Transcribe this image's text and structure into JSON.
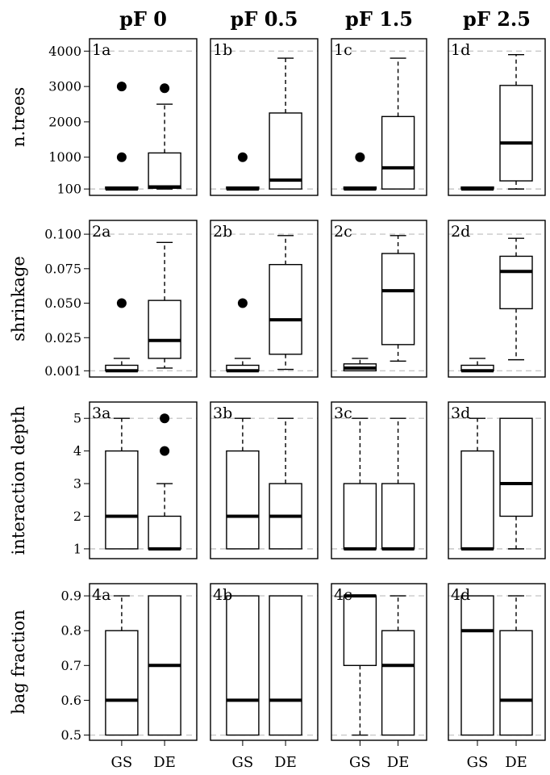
{
  "chart_data": {
    "type": "boxplot",
    "columns": [
      "pF 0",
      "pF 0.5",
      "pF 1.5",
      "pF 2.5"
    ],
    "categories": [
      "GS",
      "DE"
    ],
    "rows": [
      {
        "ylabel": "n.trees",
        "yticks": [
          100,
          1000,
          2000,
          3000,
          4000
        ],
        "ylim": [
          -80,
          4350
        ],
        "ref_lines": [
          100,
          4000
        ],
        "panels": [
          {
            "label": "1a",
            "boxes": [
              {
                "group": "GS",
                "min": 100,
                "q1": 100,
                "median": 100,
                "q3": 100,
                "max": 100,
                "outliers": [
                  1000,
                  3000
                ]
              },
              {
                "group": "DE",
                "min": 100,
                "q1": 120,
                "median": 160,
                "q3": 1120,
                "max": 2500,
                "outliers": [
                  2950
                ]
              }
            ]
          },
          {
            "label": "1b",
            "boxes": [
              {
                "group": "GS",
                "min": 100,
                "q1": 100,
                "median": 100,
                "q3": 100,
                "max": 100,
                "outliers": [
                  1000
                ]
              },
              {
                "group": "DE",
                "min": 100,
                "q1": 100,
                "median": 350,
                "q3": 2250,
                "max": 3800,
                "outliers": []
              }
            ]
          },
          {
            "label": "1c",
            "boxes": [
              {
                "group": "GS",
                "min": 100,
                "q1": 100,
                "median": 100,
                "q3": 100,
                "max": 100,
                "outliers": [
                  1000
                ]
              },
              {
                "group": "DE",
                "min": 100,
                "q1": 100,
                "median": 700,
                "q3": 2150,
                "max": 3800,
                "outliers": []
              }
            ]
          },
          {
            "label": "1d",
            "boxes": [
              {
                "group": "GS",
                "min": 100,
                "q1": 100,
                "median": 100,
                "q3": 100,
                "max": 100,
                "outliers": []
              },
              {
                "group": "DE",
                "min": 100,
                "q1": 330,
                "median": 1400,
                "q3": 3030,
                "max": 3900,
                "outliers": []
              }
            ]
          }
        ]
      },
      {
        "ylabel": "shrinkage",
        "yticks": [
          0.001,
          0.025,
          0.05,
          0.075,
          0.1
        ],
        "yticklabels": [
          "0.001",
          "0.025",
          "0.050",
          "0.075",
          "0.100"
        ],
        "ylim": [
          -0.0035,
          0.11
        ],
        "ref_lines": [
          0.001,
          0.1
        ],
        "panels": [
          {
            "label": "2a",
            "boxes": [
              {
                "group": "GS",
                "min": 0.001,
                "q1": 0.001,
                "median": 0.001,
                "q3": 0.005,
                "max": 0.01,
                "outliers": [
                  0.05
                ]
              },
              {
                "group": "DE",
                "min": 0.003,
                "q1": 0.01,
                "median": 0.023,
                "q3": 0.052,
                "max": 0.094,
                "outliers": []
              }
            ]
          },
          {
            "label": "2b",
            "boxes": [
              {
                "group": "GS",
                "min": 0.001,
                "q1": 0.001,
                "median": 0.001,
                "q3": 0.005,
                "max": 0.01,
                "outliers": [
                  0.05
                ]
              },
              {
                "group": "DE",
                "min": 0.002,
                "q1": 0.013,
                "median": 0.038,
                "q3": 0.078,
                "max": 0.099,
                "outliers": []
              }
            ]
          },
          {
            "label": "2c",
            "boxes": [
              {
                "group": "GS",
                "min": 0.001,
                "q1": 0.001,
                "median": 0.003,
                "q3": 0.006,
                "max": 0.01,
                "outliers": []
              },
              {
                "group": "DE",
                "min": 0.008,
                "q1": 0.02,
                "median": 0.059,
                "q3": 0.086,
                "max": 0.099,
                "outliers": []
              }
            ]
          },
          {
            "label": "2d",
            "boxes": [
              {
                "group": "GS",
                "min": 0.001,
                "q1": 0.001,
                "median": 0.001,
                "q3": 0.005,
                "max": 0.01,
                "outliers": []
              },
              {
                "group": "DE",
                "min": 0.009,
                "q1": 0.046,
                "median": 0.073,
                "q3": 0.084,
                "max": 0.097,
                "outliers": []
              }
            ]
          }
        ]
      },
      {
        "ylabel": "interaction depth",
        "yticks": [
          1,
          2,
          3,
          4,
          5
        ],
        "ylim": [
          0.7,
          5.5
        ],
        "ref_lines": [
          1,
          5
        ],
        "panels": [
          {
            "label": "3a",
            "boxes": [
              {
                "group": "GS",
                "min": 1,
                "q1": 1,
                "median": 2,
                "q3": 4,
                "max": 5,
                "outliers": []
              },
              {
                "group": "DE",
                "min": 1,
                "q1": 1,
                "median": 1,
                "q3": 2,
                "max": 3,
                "outliers": [
                  4,
                  5
                ]
              }
            ]
          },
          {
            "label": "3b",
            "boxes": [
              {
                "group": "GS",
                "min": 1,
                "q1": 1,
                "median": 2,
                "q3": 4,
                "max": 5,
                "outliers": []
              },
              {
                "group": "DE",
                "min": 1,
                "q1": 1,
                "median": 2,
                "q3": 3,
                "max": 5,
                "outliers": []
              }
            ]
          },
          {
            "label": "3c",
            "boxes": [
              {
                "group": "GS",
                "min": 1,
                "q1": 1,
                "median": 1,
                "q3": 3,
                "max": 5,
                "outliers": []
              },
              {
                "group": "DE",
                "min": 1,
                "q1": 1,
                "median": 1,
                "q3": 3,
                "max": 5,
                "outliers": []
              }
            ]
          },
          {
            "label": "3d",
            "boxes": [
              {
                "group": "GS",
                "min": 1,
                "q1": 1,
                "median": 1,
                "q3": 4,
                "max": 5,
                "outliers": []
              },
              {
                "group": "DE",
                "min": 1,
                "q1": 2,
                "median": 3,
                "q3": 5,
                "max": 5,
                "outliers": []
              }
            ]
          }
        ]
      },
      {
        "ylabel": "bag fraction",
        "yticks": [
          0.5,
          0.6,
          0.7,
          0.8,
          0.9
        ],
        "ylim": [
          0.485,
          0.935
        ],
        "ref_lines": [
          0.5,
          0.9
        ],
        "panels": [
          {
            "label": "4a",
            "boxes": [
              {
                "group": "GS",
                "min": 0.5,
                "q1": 0.5,
                "median": 0.6,
                "q3": 0.8,
                "max": 0.9,
                "outliers": []
              },
              {
                "group": "DE",
                "min": 0.5,
                "q1": 0.5,
                "median": 0.7,
                "q3": 0.9,
                "max": 0.9,
                "outliers": []
              }
            ]
          },
          {
            "label": "4b",
            "boxes": [
              {
                "group": "GS",
                "min": 0.5,
                "q1": 0.5,
                "median": 0.6,
                "q3": 0.9,
                "max": 0.9,
                "outliers": []
              },
              {
                "group": "DE",
                "min": 0.5,
                "q1": 0.5,
                "median": 0.6,
                "q3": 0.9,
                "max": 0.9,
                "outliers": []
              }
            ]
          },
          {
            "label": "4c",
            "boxes": [
              {
                "group": "GS",
                "min": 0.5,
                "q1": 0.7,
                "median": 0.9,
                "q3": 0.9,
                "max": 0.9,
                "outliers": []
              },
              {
                "group": "DE",
                "min": 0.5,
                "q1": 0.5,
                "median": 0.7,
                "q3": 0.8,
                "max": 0.9,
                "outliers": []
              }
            ]
          },
          {
            "label": "4d",
            "boxes": [
              {
                "group": "GS",
                "min": 0.5,
                "q1": 0.5,
                "median": 0.8,
                "q3": 0.9,
                "max": 0.9,
                "outliers": []
              },
              {
                "group": "DE",
                "min": 0.5,
                "q1": 0.5,
                "median": 0.6,
                "q3": 0.8,
                "max": 0.9,
                "outliers": []
              }
            ]
          }
        ]
      }
    ]
  }
}
